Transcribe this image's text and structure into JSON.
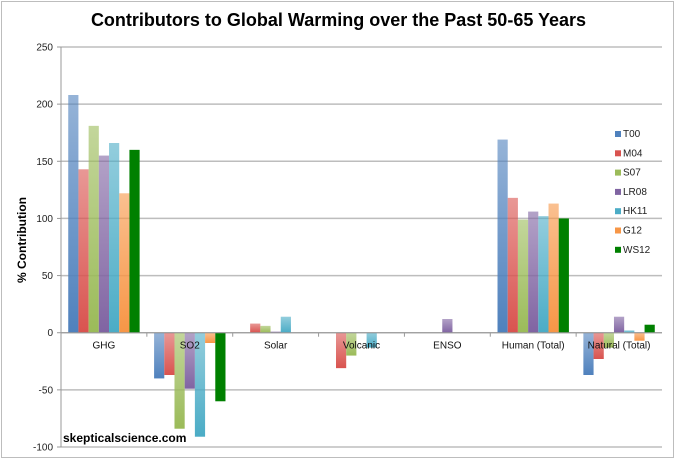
{
  "chart_data": {
    "type": "bar",
    "title": "Contributors to Global Warming over the Past 50-65 Years",
    "xlabel": "",
    "ylabel": "% Contribution",
    "ylim": [
      -100,
      250
    ],
    "yticks": [
      250,
      200,
      150,
      100,
      50,
      0,
      -50,
      -100
    ],
    "grid": true,
    "legend_position": "right",
    "categories": [
      "GHG",
      "SO2",
      "Solar",
      "Volcanic",
      "ENSO",
      "Human (Total)",
      "Natural (Total)"
    ],
    "series": [
      {
        "name": "T00",
        "color": "#4f81bd",
        "values": [
          208,
          -40,
          0,
          0,
          0,
          169,
          -37
        ]
      },
      {
        "name": "M04",
        "color": "#d9534f",
        "values": [
          143,
          -37,
          8,
          -31,
          0,
          118,
          -23
        ]
      },
      {
        "name": "S07",
        "color": "#9bbb59",
        "values": [
          181,
          -84,
          6,
          -20,
          0,
          99,
          -13
        ]
      },
      {
        "name": "LR08",
        "color": "#8064a2",
        "values": [
          155,
          -49,
          1,
          0,
          12,
          106,
          14
        ]
      },
      {
        "name": "HK11",
        "color": "#4bacc6",
        "values": [
          166,
          -91,
          14,
          -13,
          0,
          102,
          2
        ]
      },
      {
        "name": "G12",
        "color": "#f79646",
        "values": [
          122,
          -9,
          0,
          0,
          0,
          113,
          -7
        ]
      },
      {
        "name": "WS12",
        "color": "#008000",
        "values": [
          160,
          -60,
          0,
          0,
          0,
          100,
          7
        ]
      }
    ]
  },
  "watermark": "skepticalscience.com"
}
